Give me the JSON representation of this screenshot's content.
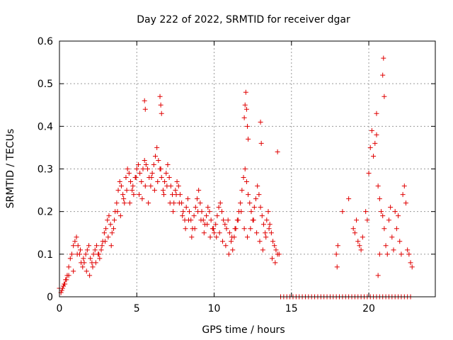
{
  "chart_data": {
    "type": "scatter",
    "title": "Day 222 of 2022, SRMTID for receiver dgar",
    "xlabel": "GPS time / hours",
    "ylabel": "SRMTID / TECUs",
    "xlim": [
      0,
      24.3
    ],
    "ylim": [
      0,
      0.6
    ],
    "xticks": [
      0,
      5,
      10,
      15,
      20
    ],
    "xtick_labels": [
      "0",
      "5",
      "10",
      "15",
      "20"
    ],
    "yticks": [
      0,
      0.1,
      0.2,
      0.3,
      0.4,
      0.5,
      0.6
    ],
    "ytick_labels": [
      "0",
      "0.1",
      "0.2",
      "0.3",
      "0.4",
      "0.5",
      "0.6"
    ],
    "grid": true,
    "marker": "+",
    "series": [
      {
        "name": "SRMTID",
        "color": "#e00000",
        "x": [
          0.0,
          0.1,
          0.2,
          0.3,
          0.4,
          0.5,
          0.6,
          0.7,
          0.8,
          0.9,
          1.0,
          1.1,
          1.2,
          1.3,
          1.4,
          1.5,
          1.6,
          1.7,
          1.8,
          1.9,
          2.0,
          2.1,
          2.2,
          2.3,
          2.4,
          2.5,
          2.6,
          2.7,
          2.8,
          2.9,
          3.0,
          3.1,
          3.2,
          3.3,
          3.4,
          3.5,
          3.6,
          3.7,
          3.8,
          3.9,
          4.0,
          4.1,
          4.2,
          4.3,
          4.4,
          4.5,
          4.6,
          4.7,
          4.8,
          4.9,
          5.0,
          5.1,
          5.2,
          5.3,
          5.4,
          5.5,
          5.6,
          5.7,
          5.8,
          5.9,
          6.0,
          6.1,
          6.2,
          6.3,
          6.4,
          6.5,
          6.6,
          6.7,
          6.8,
          6.9,
          7.0,
          7.1,
          7.2,
          7.3,
          7.4,
          7.5,
          7.6,
          7.7,
          7.8,
          7.9,
          8.0,
          8.1,
          8.2,
          8.3,
          8.4,
          8.5,
          8.6,
          8.7,
          8.8,
          8.9,
          9.0,
          9.1,
          9.2,
          9.3,
          9.4,
          9.5,
          9.6,
          9.7,
          9.8,
          9.9,
          10.0,
          10.1,
          10.2,
          10.3,
          10.4,
          10.5,
          10.6,
          10.7,
          10.8,
          10.9,
          11.0,
          11.1,
          11.2,
          11.3,
          11.4,
          11.5,
          11.6,
          11.7,
          11.8,
          11.9,
          12.0,
          12.1,
          12.2,
          12.3,
          12.4,
          12.5,
          12.6,
          12.7,
          12.8,
          12.9,
          13.0,
          13.1,
          13.2,
          13.3,
          13.4,
          13.5,
          13.6,
          13.7,
          13.8,
          13.9,
          14.0,
          14.1,
          0.15,
          0.25,
          0.35,
          0.45,
          0.6,
          0.9,
          1.15,
          1.35,
          1.55,
          1.75,
          1.95,
          2.15,
          2.35,
          2.55,
          2.75,
          2.95,
          3.15,
          3.35,
          3.55,
          3.75,
          3.95,
          4.15,
          4.35,
          4.55,
          4.75,
          4.95,
          5.15,
          5.35,
          5.55,
          5.75,
          5.95,
          6.15,
          6.35,
          6.55,
          6.75,
          6.95,
          7.15,
          7.35,
          7.55,
          7.75,
          7.95,
          8.15,
          8.35,
          8.55,
          8.75,
          8.95,
          9.15,
          9.35,
          9.55,
          9.75,
          9.95,
          10.15,
          10.35,
          10.55,
          10.75,
          10.95,
          11.15,
          11.35,
          11.55,
          11.75,
          11.95,
          12.15,
          12.35,
          12.55,
          12.75,
          12.95,
          13.15,
          13.35,
          13.55,
          13.75,
          13.95,
          5.5,
          5.55,
          6.5,
          6.55,
          6.6,
          11.95,
          12.0,
          12.05,
          12.1,
          12.15,
          12.2,
          13.0,
          13.05,
          14.1,
          14.2,
          14.3,
          14.5,
          14.7,
          14.9,
          15.1,
          15.3,
          15.5,
          15.7,
          15.9,
          16.1,
          16.3,
          16.5,
          16.7,
          16.9,
          17.1,
          17.3,
          17.5,
          17.7,
          17.9,
          18.1,
          18.3,
          18.5,
          18.7,
          18.9,
          19.1,
          19.3,
          19.5,
          19.7,
          19.9,
          20.1,
          20.3,
          20.5,
          20.7,
          20.9,
          21.1,
          21.3,
          21.5,
          21.7,
          21.9,
          22.1,
          22.3,
          22.5,
          22.7,
          17.9,
          17.95,
          18.0,
          18.3,
          18.7,
          19.0,
          19.1,
          19.2,
          19.3,
          19.4,
          19.5,
          19.6,
          19.8,
          19.9,
          20.0,
          20.1,
          20.2,
          20.3,
          20.4,
          20.5,
          20.6,
          20.7,
          20.8,
          20.9,
          21.0,
          21.1,
          21.2,
          21.3,
          21.4,
          21.5,
          21.6,
          21.7,
          21.8,
          21.9,
          22.0,
          22.1,
          22.2,
          22.3,
          22.4,
          22.5,
          22.6,
          22.7,
          22.8,
          20.9,
          20.95,
          21.0,
          20.5,
          20.6,
          20.7
        ],
        "y": [
          0.02,
          0.01,
          0.02,
          0.03,
          0.04,
          0.05,
          0.07,
          0.09,
          0.1,
          0.12,
          0.13,
          0.14,
          0.12,
          0.1,
          0.08,
          0.07,
          0.08,
          0.1,
          0.11,
          0.12,
          0.09,
          0.08,
          0.1,
          0.11,
          0.12,
          0.1,
          0.09,
          0.11,
          0.13,
          0.15,
          0.16,
          0.18,
          0.19,
          0.17,
          0.15,
          0.16,
          0.2,
          0.22,
          0.25,
          0.27,
          0.26,
          0.24,
          0.22,
          0.28,
          0.3,
          0.29,
          0.27,
          0.25,
          0.24,
          0.28,
          0.3,
          0.31,
          0.29,
          0.27,
          0.3,
          0.32,
          0.31,
          0.3,
          0.28,
          0.26,
          0.29,
          0.31,
          0.33,
          0.35,
          0.32,
          0.3,
          0.28,
          0.25,
          0.27,
          0.29,
          0.31,
          0.28,
          0.26,
          0.24,
          0.22,
          0.25,
          0.27,
          0.26,
          0.24,
          0.22,
          0.2,
          0.18,
          0.21,
          0.23,
          0.2,
          0.18,
          0.16,
          0.19,
          0.21,
          0.23,
          0.25,
          0.22,
          0.2,
          0.18,
          0.17,
          0.19,
          0.21,
          0.2,
          0.18,
          0.16,
          0.15,
          0.17,
          0.19,
          0.21,
          0.22,
          0.2,
          0.18,
          0.17,
          0.16,
          0.18,
          0.15,
          0.13,
          0.11,
          0.14,
          0.16,
          0.18,
          0.2,
          0.22,
          0.25,
          0.28,
          0.3,
          0.27,
          0.24,
          0.22,
          0.2,
          0.18,
          0.21,
          0.23,
          0.26,
          0.24,
          0.21,
          0.19,
          0.17,
          0.15,
          0.18,
          0.2,
          0.17,
          0.15,
          0.13,
          0.12,
          0.11,
          0.1,
          0.015,
          0.025,
          0.03,
          0.04,
          0.05,
          0.06,
          0.1,
          0.11,
          0.09,
          0.06,
          0.05,
          0.07,
          0.08,
          0.1,
          0.12,
          0.13,
          0.14,
          0.12,
          0.18,
          0.2,
          0.19,
          0.23,
          0.25,
          0.22,
          0.26,
          0.28,
          0.24,
          0.23,
          0.26,
          0.22,
          0.28,
          0.25,
          0.27,
          0.3,
          0.24,
          0.26,
          0.22,
          0.2,
          0.24,
          0.22,
          0.19,
          0.16,
          0.18,
          0.14,
          0.16,
          0.2,
          0.18,
          0.15,
          0.17,
          0.14,
          0.16,
          0.14,
          0.15,
          0.13,
          0.12,
          0.1,
          0.14,
          0.16,
          0.18,
          0.2,
          0.16,
          0.14,
          0.16,
          0.18,
          0.15,
          0.13,
          0.11,
          0.14,
          0.16,
          0.09,
          0.08,
          0.46,
          0.44,
          0.47,
          0.45,
          0.43,
          0.42,
          0.45,
          0.48,
          0.44,
          0.4,
          0.37,
          0.41,
          0.36,
          0.34,
          0.1,
          0.0,
          0.0,
          0.0,
          0.0,
          0.0,
          0.0,
          0.0,
          0.0,
          0.0,
          0.0,
          0.0,
          0.0,
          0.0,
          0.0,
          0.0,
          0.0,
          0.0,
          0.0,
          0.0,
          0.0,
          0.0,
          0.0,
          0.0,
          0.0,
          0.0,
          0.0,
          0.0,
          0.0,
          0.0,
          0.0,
          0.0,
          0.0,
          0.0,
          0.0,
          0.0,
          0.0,
          0.0,
          0.0,
          0.0,
          0.0,
          0.0,
          0.0,
          0.0,
          0.1,
          0.07,
          0.12,
          0.2,
          0.23,
          0.16,
          0.15,
          0.18,
          0.13,
          0.12,
          0.11,
          0.14,
          0.2,
          0.18,
          0.29,
          0.35,
          0.39,
          0.33,
          0.36,
          0.38,
          0.26,
          0.23,
          0.2,
          0.19,
          0.16,
          0.12,
          0.1,
          0.18,
          0.21,
          0.14,
          0.11,
          0.2,
          0.16,
          0.19,
          0.13,
          0.1,
          0.24,
          0.26,
          0.22,
          0.11,
          0.1,
          0.08,
          0.07,
          0.52,
          0.56,
          0.47,
          0.43,
          0.05,
          0.1
        ]
      }
    ]
  }
}
